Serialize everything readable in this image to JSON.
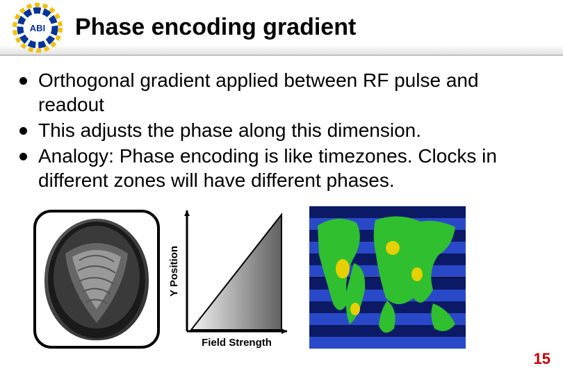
{
  "header": {
    "title": "Phase encoding gradient",
    "logo": {
      "text": "ABI",
      "text_color": "#003399",
      "ring_colors": [
        "#003399",
        "#f0c000"
      ]
    }
  },
  "bullets": [
    "Orthogonal gradient applied between RF pulse and readout",
    "This adjusts the phase along this dimension.",
    "Analogy: Phase encoding is like timezones. Clocks in different zones will have different phases."
  ],
  "chart": {
    "ylabel": "Y Position",
    "xlabel": "Field Strength",
    "axis_color": "#000000",
    "triangle_fill_from": "#f2f2f2",
    "triangle_fill_to": "#606060",
    "triangle_stroke": "#000000"
  },
  "globe": {
    "stripe_colors": [
      "#0c1a66",
      "#2a49c8"
    ],
    "stripe_count": 12,
    "land_color_primary": "#2fbf2f",
    "land_color_secondary": "#e6d000"
  },
  "page_number": "15"
}
